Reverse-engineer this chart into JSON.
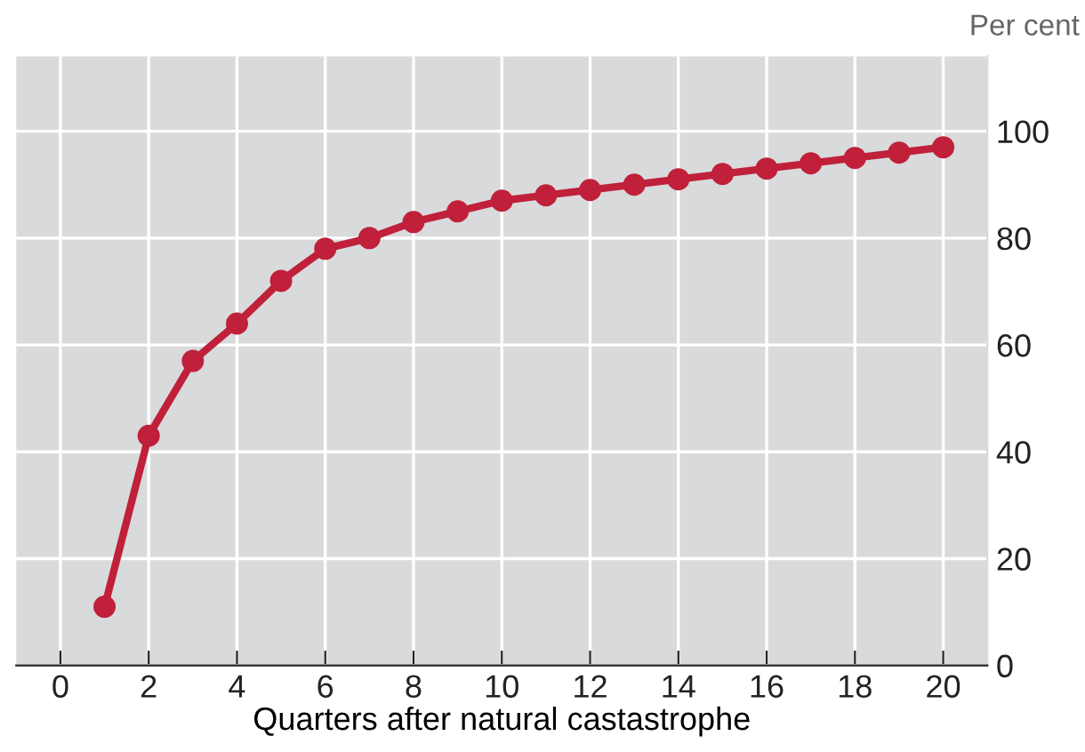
{
  "chart_data": {
    "type": "line",
    "xlabel": "Quarters after natural castastrophe",
    "ylabel": "Per cent",
    "x": [
      1,
      2,
      3,
      4,
      5,
      6,
      7,
      8,
      9,
      10,
      11,
      12,
      13,
      14,
      15,
      16,
      17,
      18,
      19,
      20
    ],
    "series": [
      {
        "color": "#c0203a",
        "values": [
          11,
          43,
          57,
          64,
          72,
          78,
          80,
          83,
          85,
          87,
          88,
          89,
          90,
          91,
          92,
          93,
          94,
          95,
          96,
          97
        ]
      }
    ],
    "xlim": [
      -1,
      21
    ],
    "xticks": [
      0,
      2,
      4,
      6,
      8,
      10,
      12,
      14,
      16,
      18,
      20
    ],
    "ylim": [
      0,
      114
    ],
    "yticks": [
      0,
      20,
      40,
      60,
      80,
      100
    ],
    "grid": true,
    "marker": "circle",
    "line_style": "solid",
    "legend": false
  }
}
